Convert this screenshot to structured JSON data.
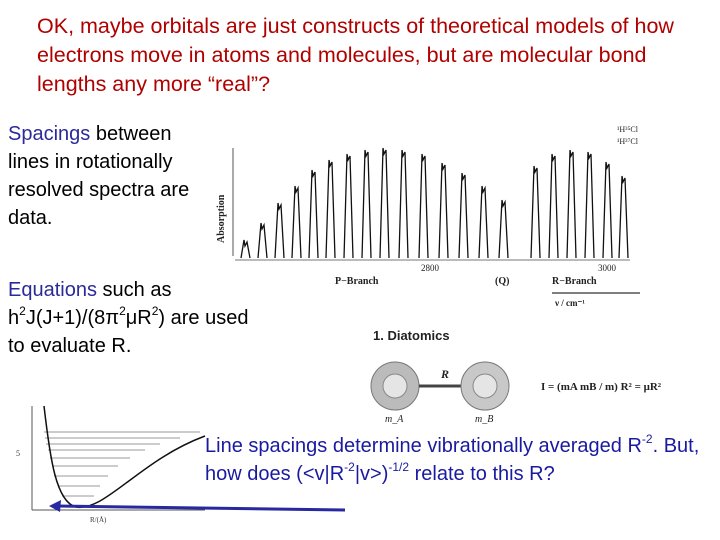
{
  "title": "OK, maybe orbitals are just constructs of theoretical models of how electrons move in atoms and molecules, but are molecular bond lengths any more “real”?",
  "para1": {
    "highlight": "Spacings",
    "rest": " between lines in rotationally resolved spectra are data."
  },
  "para2": {
    "highlight": "Equations",
    "line1_rest": " such as",
    "eq_a": "h",
    "eq_sup1": "2",
    "eq_b": "J(J+1)/(8π",
    "eq_sup2": "2",
    "eq_c": "μR",
    "eq_sup3": "2",
    "eq_d": ") are used",
    "line3": "to evaluate R."
  },
  "para3": {
    "a": "Line spacings determine vibrationally averaged R",
    "sup1": "-2",
    "b": ". But, how does (<v|R",
    "sup2": "-2",
    "c": "|v>)",
    "sup3": "-1/2",
    "d": " relate to this R?"
  },
  "spectrum": {
    "ylabel": "Absorption",
    "legend1": "¹H³⁵Cl",
    "legend2": "¹H³⁷Cl",
    "tick1": "2800",
    "tick2": "3000",
    "q_label": "(Q)",
    "p_branch": "P−Branch",
    "r_branch": "R−Branch",
    "x_unit": "ν / cm⁻¹"
  },
  "diatomic": {
    "heading": "1. Diatomics",
    "bond_label": "R",
    "atom_a": "m_A",
    "atom_b": "m_B",
    "formula": "I = (mA mB / m) R² = μR²"
  },
  "potential": {
    "y_tick": "5",
    "x_label": "R/(Å)"
  },
  "colors": {
    "title": "#b00000",
    "highlight": "#2a2a9a",
    "para3": "#1a1aa0",
    "arrow": "#2828a0"
  }
}
